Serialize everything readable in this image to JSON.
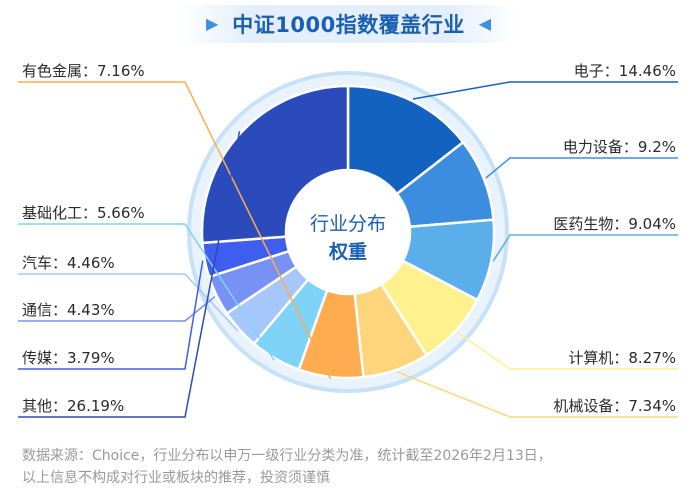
{
  "title": "中证1000指数覆盖行业",
  "center_label": {
    "line1": "行业分布",
    "line2": "权重"
  },
  "chart_data": {
    "type": "pie",
    "title": "中证1000指数覆盖行业",
    "slices": [
      {
        "name": "电子",
        "value": 14.46,
        "display": "电子：14.46%",
        "color": "#1462c0",
        "side": "right"
      },
      {
        "name": "电力设备",
        "value": 9.2,
        "display": "电力设备：9.2%",
        "color": "#3c8de0",
        "side": "right"
      },
      {
        "name": "医药生物",
        "value": 9.04,
        "display": "医药生物：9.04%",
        "color": "#5aaee9",
        "side": "right"
      },
      {
        "name": "计算机",
        "value": 8.27,
        "display": "计算机：8.27%",
        "color": "#fff28e",
        "side": "right"
      },
      {
        "name": "机械设备",
        "value": 7.34,
        "display": "机械设备：7.34%",
        "color": "#ffd57c",
        "side": "right"
      },
      {
        "name": "有色金属",
        "value": 7.16,
        "display": "有色金属：7.16%",
        "color": "#ffab4f",
        "side": "left"
      },
      {
        "name": "基础化工",
        "value": 5.66,
        "display": "基础化工：5.66%",
        "color": "#7ed3f7",
        "side": "left"
      },
      {
        "name": "汽车",
        "value": 4.46,
        "display": "汽车：4.46%",
        "color": "#a6c7fa",
        "side": "left"
      },
      {
        "name": "通信",
        "value": 4.43,
        "display": "通信：4.43%",
        "color": "#7791f5",
        "side": "left"
      },
      {
        "name": "传媒",
        "value": 3.79,
        "display": "传媒：3.79%",
        "color": "#3f5dee",
        "side": "left"
      },
      {
        "name": "其他",
        "value": 26.19,
        "display": "其他：26.19%",
        "color": "#2b4bbd",
        "side": "left"
      }
    ]
  },
  "footnote": {
    "line1": "数据来源：Choice，行业分布以申万一级行业分类为准，统计截至2026年2月13日，",
    "line2": "以上信息不构成对行业或板块的推荐，投资须谨慎"
  }
}
